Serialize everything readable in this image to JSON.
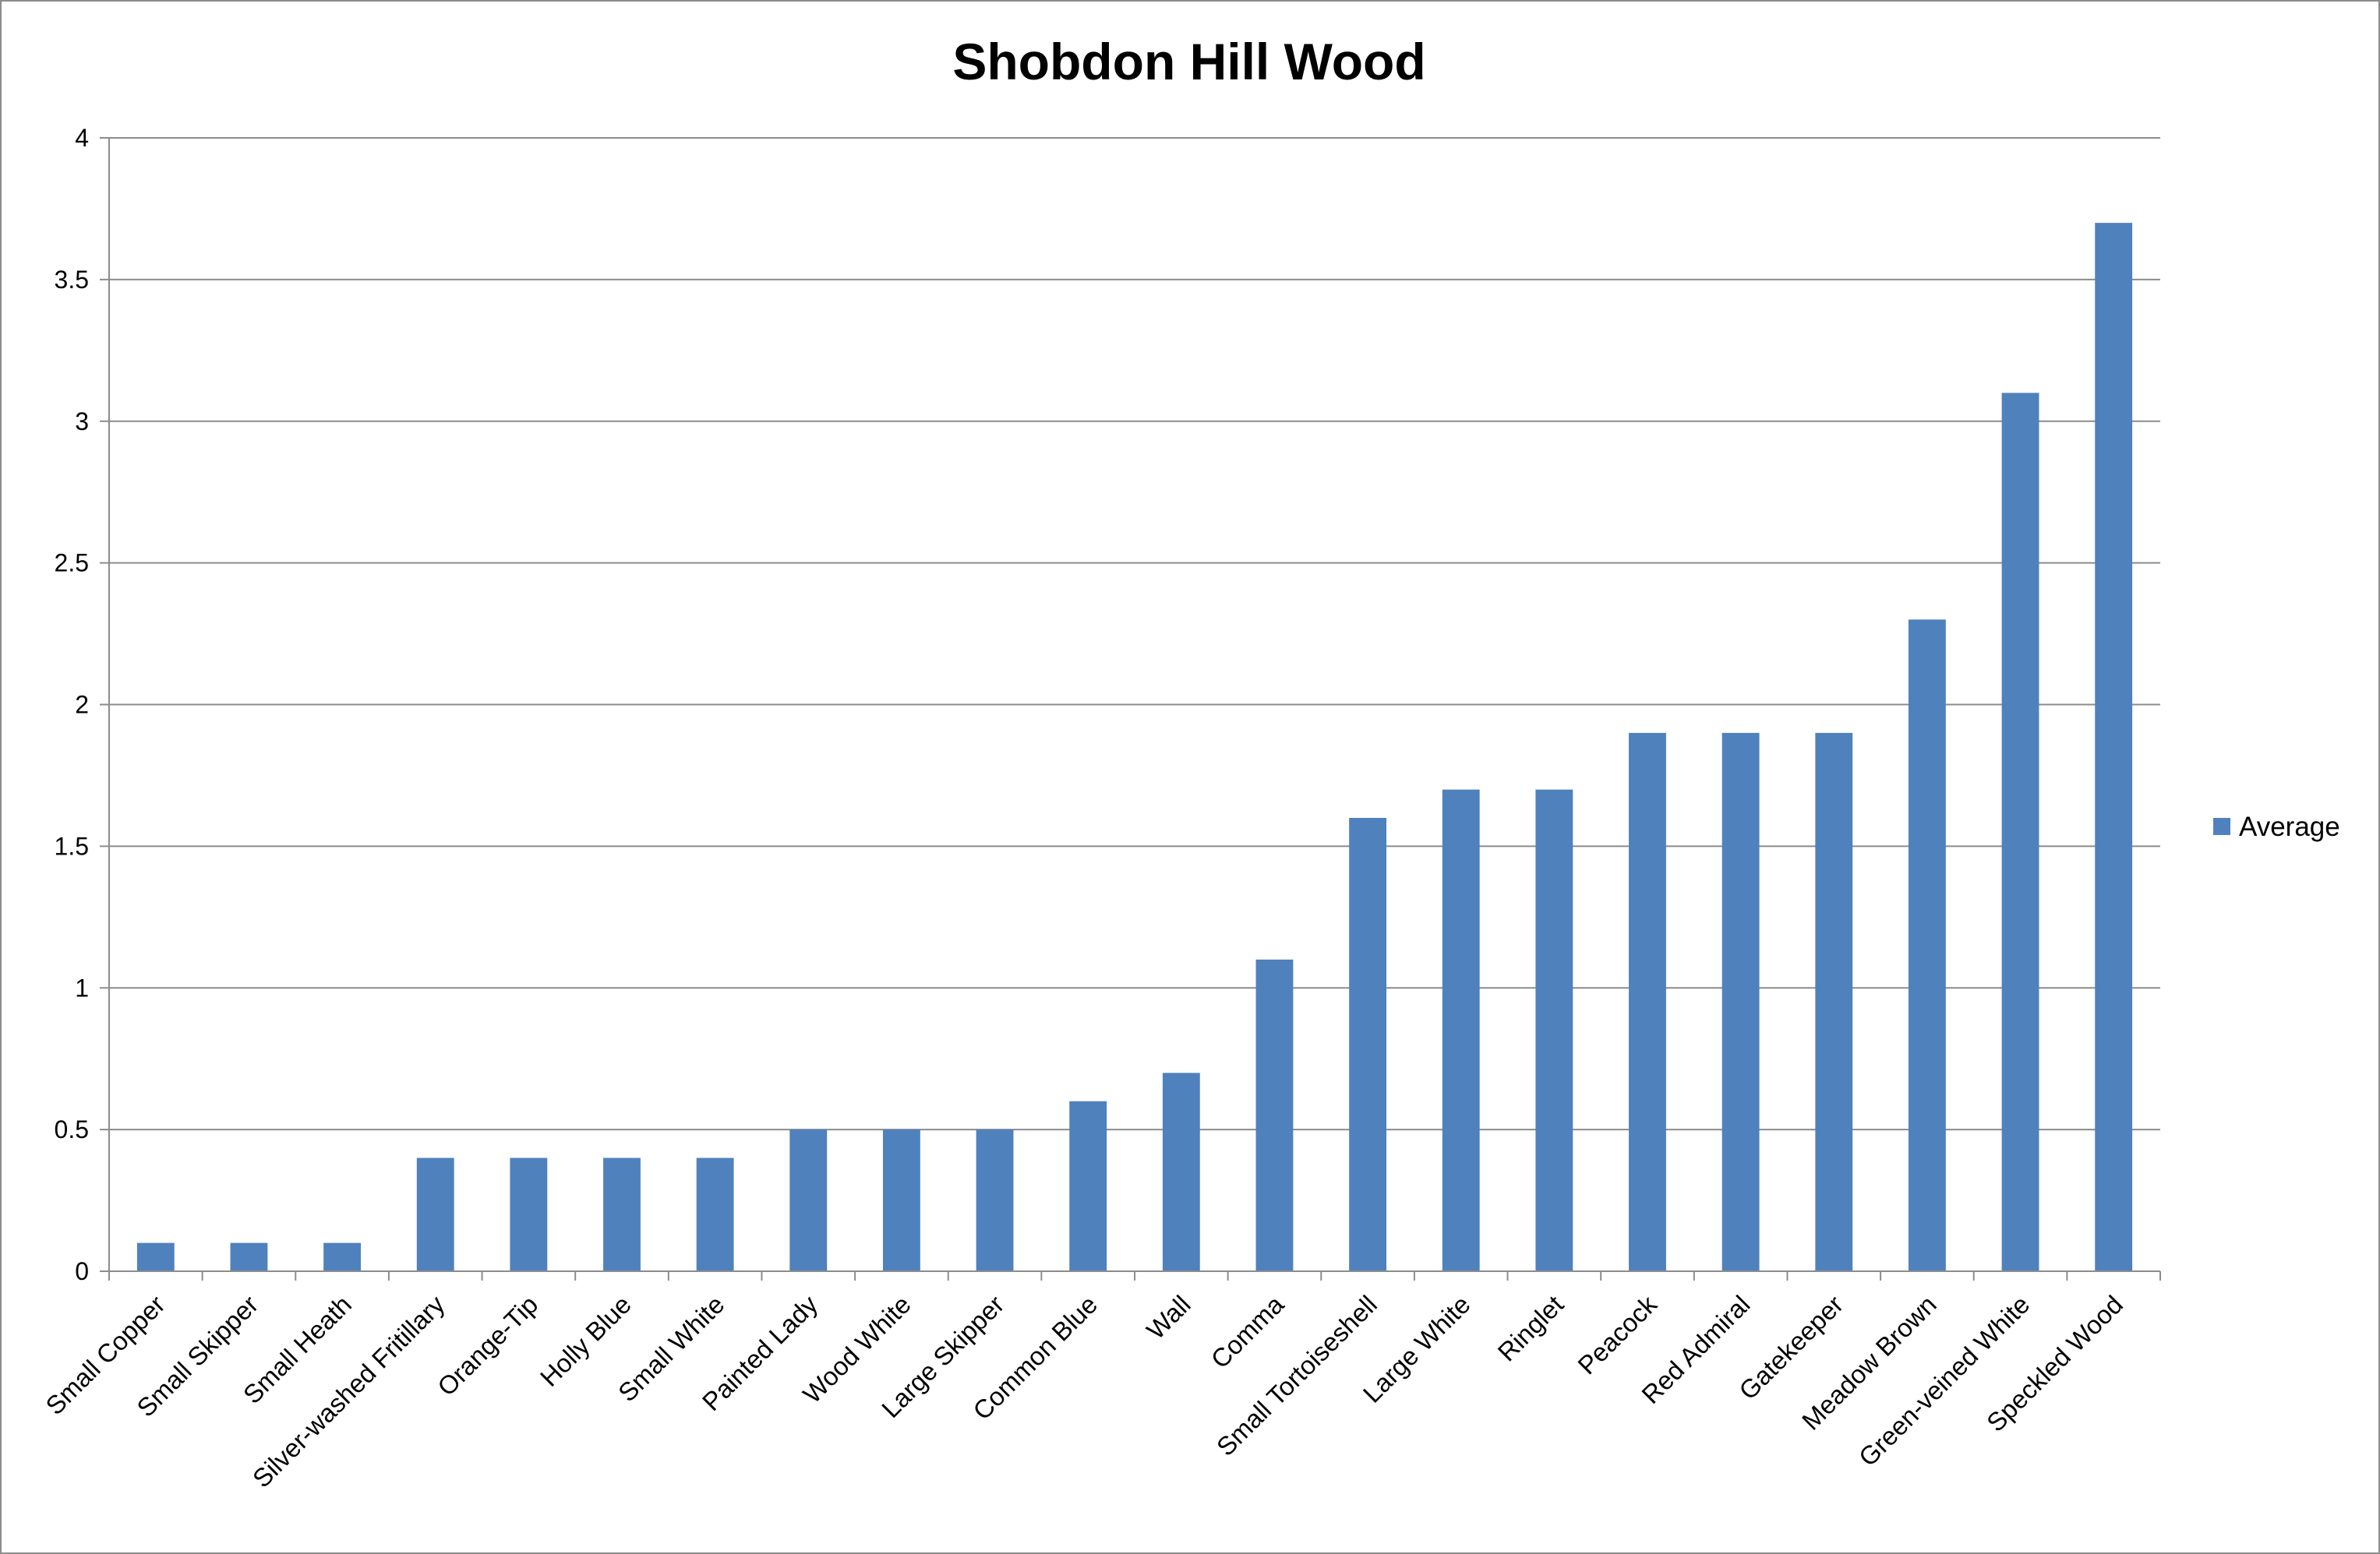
{
  "chart_data": {
    "type": "bar",
    "title": "Shobdon Hill Wood",
    "xlabel": "",
    "ylabel": "",
    "ylim": [
      0,
      4
    ],
    "yticks": [
      "0",
      "0.5",
      "1",
      "1.5",
      "2",
      "2.5",
      "3",
      "3.5",
      "4"
    ],
    "grid": true,
    "legend_position": "right",
    "categories": [
      "Small Copper",
      "Small Skipper",
      "Small Heath",
      "Silver-washed Fritillary",
      "Orange-Tip",
      "Holly Blue",
      "Small White",
      "Painted Lady",
      "Wood White",
      "Large Skipper",
      "Common Blue",
      "Wall",
      "Comma",
      "Small Tortoiseshell",
      "Large White",
      "Ringlet",
      "Peacock",
      "Red Admiral",
      "Gatekeeper",
      "Meadow Brown",
      "Green-veined White",
      "Speckled Wood"
    ],
    "series": [
      {
        "name": "Average",
        "color": "#4f81bd",
        "values": [
          0.1,
          0.1,
          0.1,
          0.4,
          0.4,
          0.4,
          0.4,
          0.5,
          0.5,
          0.5,
          0.6,
          0.7,
          1.1,
          1.6,
          1.7,
          1.7,
          1.9,
          1.9,
          1.9,
          2.3,
          3.1,
          3.7
        ]
      }
    ]
  }
}
